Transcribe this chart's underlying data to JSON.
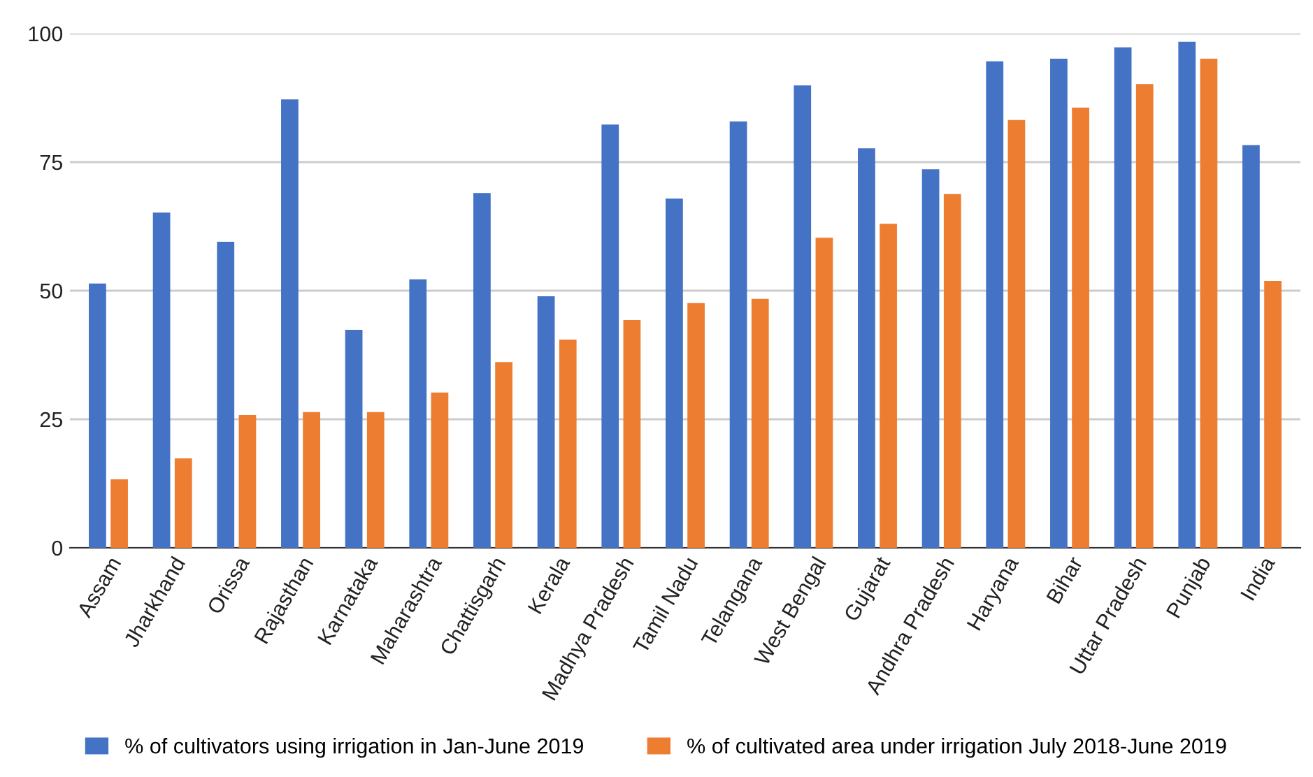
{
  "chart_data": {
    "type": "bar",
    "categories": [
      "Assam",
      "Jharkhand",
      "Orissa",
      "Rajasthan",
      "Karnataka",
      "Maharashtra",
      "Chattisgarh",
      "Kerala",
      "Madhya Pradesh",
      "Tamil Nadu",
      "Telangana",
      "West Bengal",
      "Gujarat",
      "Andhra Pradesh",
      "Haryana",
      "Bihar",
      "Uttar Pradesh",
      "Punjab",
      "India"
    ],
    "series": [
      {
        "name": "% of cultivators using irrigation in Jan-June 2019",
        "color": "#4472c4",
        "values": [
          51.4,
          65.2,
          59.5,
          87.2,
          42.4,
          52.2,
          69.0,
          48.9,
          82.3,
          67.9,
          82.9,
          89.9,
          77.7,
          73.6,
          94.6,
          95.1,
          97.3,
          98.4,
          78.3
        ]
      },
      {
        "name": "% of cultivated area under irrigation July 2018-June 2019",
        "color": "#ed7d31",
        "values": [
          13.3,
          17.4,
          25.8,
          26.4,
          26.4,
          30.2,
          36.1,
          40.5,
          44.3,
          47.6,
          48.4,
          60.3,
          63.0,
          68.8,
          83.2,
          85.6,
          90.2,
          95.1,
          51.9
        ]
      }
    ],
    "ylim": [
      0,
      100
    ],
    "yticks": [
      0,
      25,
      50,
      75,
      100
    ],
    "grid": "y",
    "legend": "bottom"
  }
}
